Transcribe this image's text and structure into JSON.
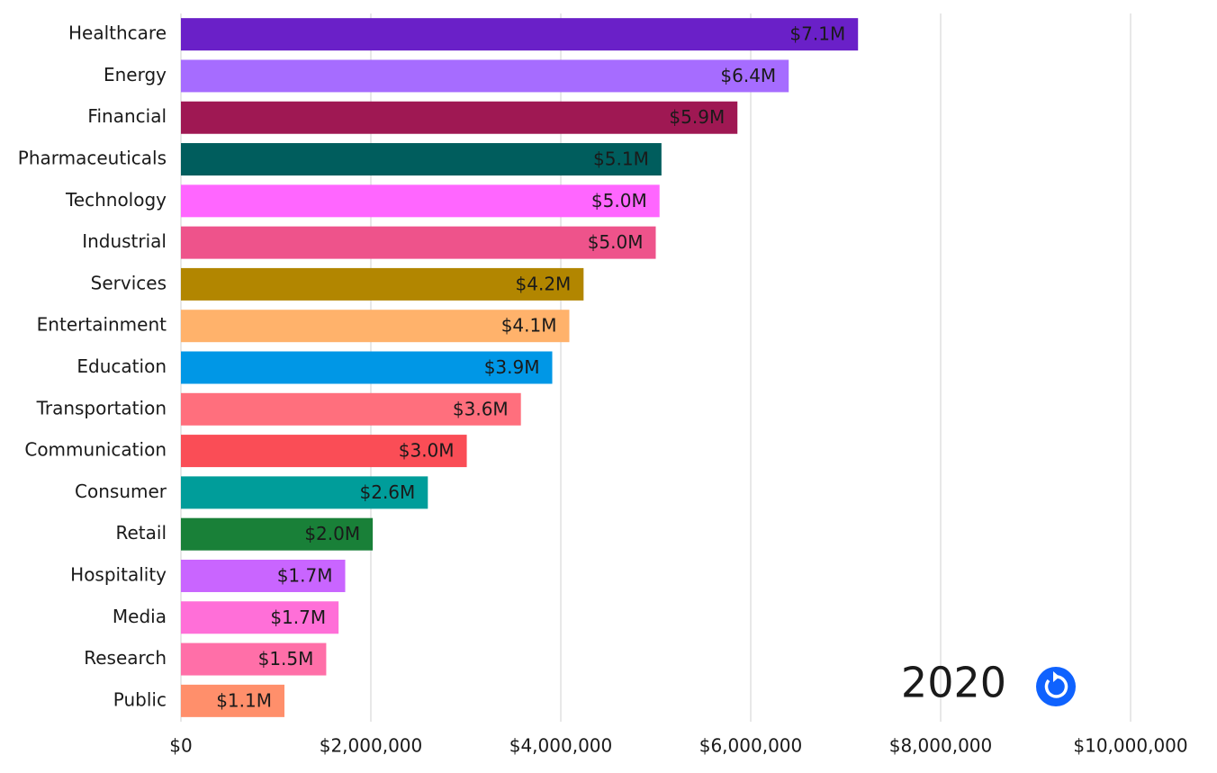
{
  "chart_data": {
    "type": "bar",
    "orientation": "horizontal",
    "categories": [
      "Healthcare",
      "Energy",
      "Financial",
      "Pharmaceuticals",
      "Technology",
      "Industrial",
      "Services",
      "Entertainment",
      "Education",
      "Transportation",
      "Communication",
      "Consumer",
      "Retail",
      "Hospitality",
      "Media",
      "Research",
      "Public"
    ],
    "values": [
      7130000,
      6400000,
      5860000,
      5060000,
      5040000,
      5000000,
      4240000,
      4090000,
      3910000,
      3580000,
      3010000,
      2600000,
      2020000,
      1730000,
      1660000,
      1530000,
      1090000
    ],
    "value_labels": [
      "$7.1M",
      "$6.4M",
      "$5.9M",
      "$5.1M",
      "$5.0M",
      "$5.0M",
      "$4.2M",
      "$4.1M",
      "$3.9M",
      "$3.6M",
      "$3.0M",
      "$2.6M",
      "$2.0M",
      "$1.7M",
      "$1.7M",
      "$1.5M",
      "$1.1M"
    ],
    "colors": [
      "#6a20c8",
      "#a66cff",
      "#9f1853",
      "#005d5d",
      "#ff66ff",
      "#ee538b",
      "#b28600",
      "#ffb26b",
      "#0097e6",
      "#ff6f7d",
      "#fa4d56",
      "#009d9a",
      "#198038",
      "#c965ff",
      "#ff6fd8",
      "#ff6fa8",
      "#ff8f6b"
    ],
    "xlim": [
      0,
      10000000
    ],
    "xticks": [
      {
        "value": 0,
        "label": "$0"
      },
      {
        "value": 2000000,
        "label": "$2,000,000"
      },
      {
        "value": 4000000,
        "label": "$4,000,000"
      },
      {
        "value": 6000000,
        "label": "$6,000,000"
      },
      {
        "value": 8000000,
        "label": "$8,000,000"
      },
      {
        "value": 10000000,
        "label": "$10,000,000"
      }
    ],
    "grid": true,
    "annotation": "2020"
  }
}
